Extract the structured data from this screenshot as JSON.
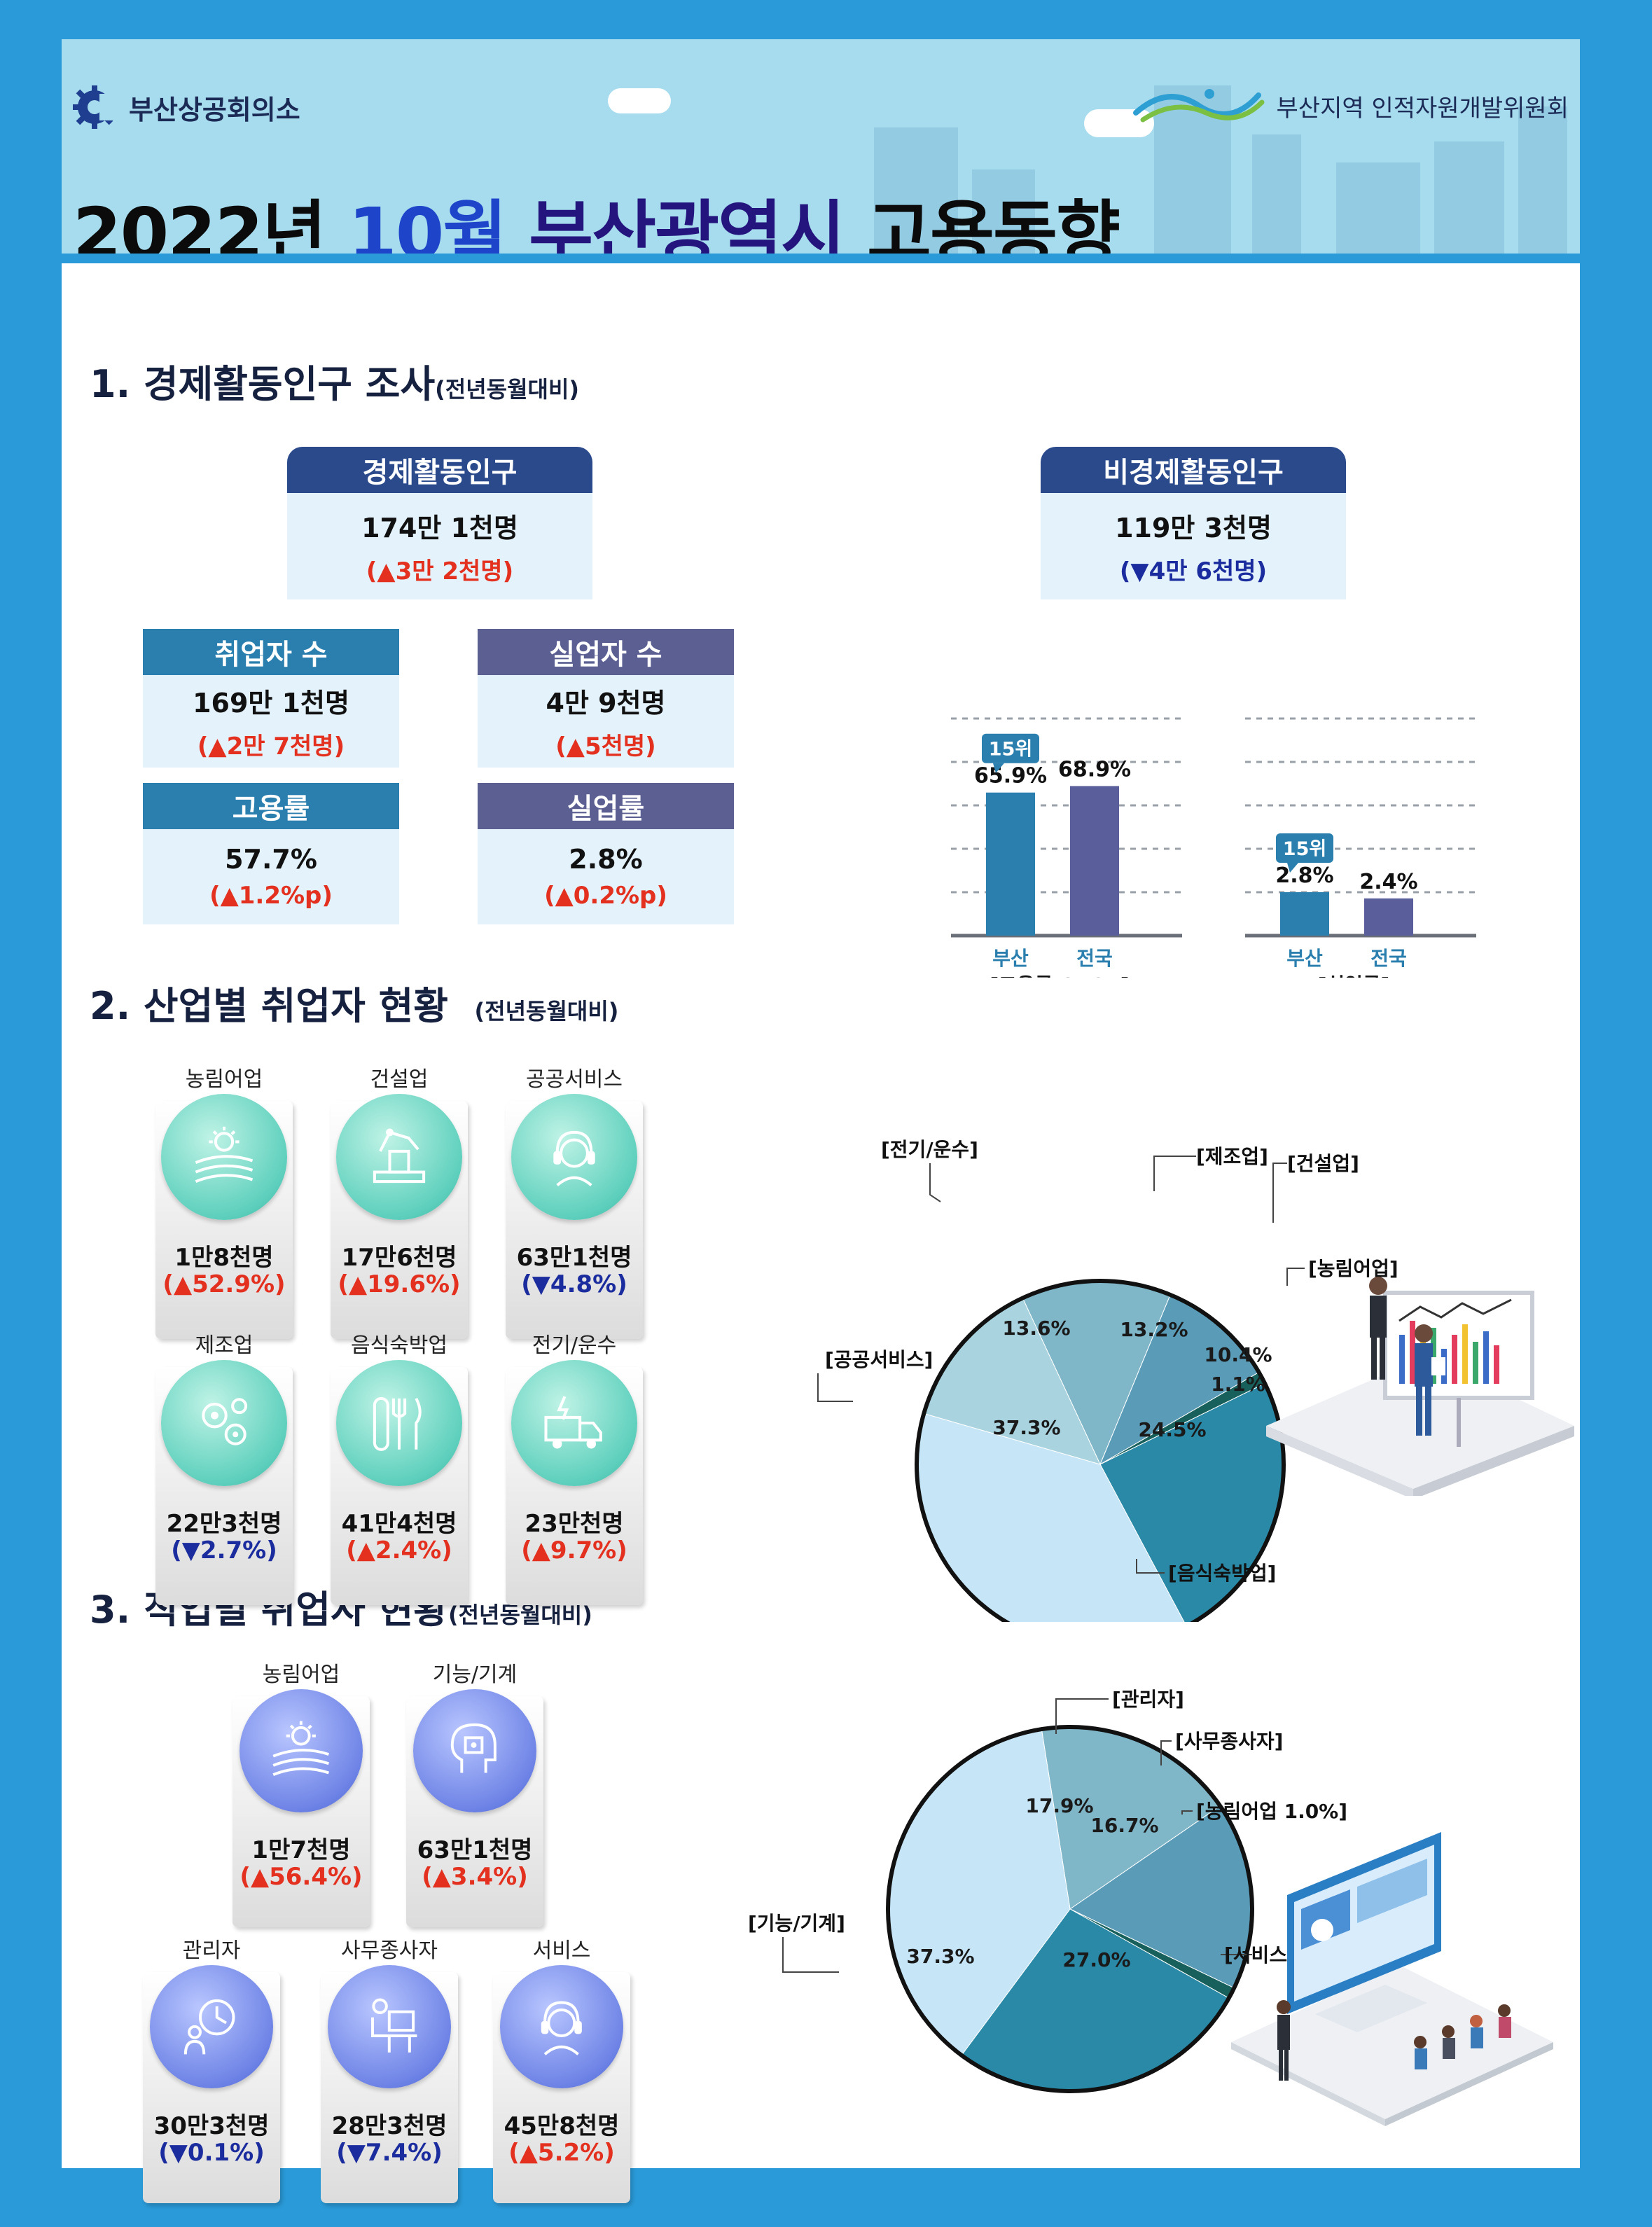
{
  "header": {
    "org_left": "부산상공회의소",
    "org_right": "부산지역 인적자원개발위원회",
    "title_year": "2022년",
    "title_month": "10월",
    "title_city": "부산광역시",
    "title_topic": "고용동향"
  },
  "section1": {
    "title": "1. 경제활동인구 조사",
    "subtitle": "(전년동월대비)",
    "econ_active": {
      "label": "경제활동인구",
      "value": "174만 1천명",
      "change": "(▲3만 2천명)"
    },
    "non_econ_active": {
      "label": "비경제활동인구",
      "value": "119만 3천명",
      "change": "(▼4만 6천명)"
    },
    "employed": {
      "label": "취업자 수",
      "value": "169만 1천명",
      "change": "(▲2만 7천명)"
    },
    "unemployed": {
      "label": "실업자 수",
      "value": "4만 9천명",
      "change": "(▲5천명)"
    },
    "employment_rate": {
      "label": "고용률",
      "value": "57.7%",
      "change": "(▲1.2%p)"
    },
    "unemployment_rate": {
      "label": "실업률",
      "value": "2.8%",
      "change": "(▲0.2%p)"
    }
  },
  "section2": {
    "title": "2. 산업별 취업자 현황",
    "subtitle": "(전년동월대비)",
    "items": [
      {
        "label": "농림어업",
        "value": "1만8천명",
        "change": "(▲52.9%)",
        "dir": "up",
        "icon": "farm-icon"
      },
      {
        "label": "건설업",
        "value": "17만6천명",
        "change": "(▲19.6%)",
        "dir": "up",
        "icon": "construction-icon"
      },
      {
        "label": "공공서비스",
        "value": "63만1천명",
        "change": "(▼4.8%)",
        "dir": "down",
        "icon": "headset-icon"
      },
      {
        "label": "제조업",
        "value": "22만3천명",
        "change": "(▼2.7%)",
        "dir": "down",
        "icon": "gears-icon"
      },
      {
        "label": "음식숙박업",
        "value": "41만4천명",
        "change": "(▲2.4%)",
        "dir": "up",
        "icon": "cutlery-icon"
      },
      {
        "label": "전기/운수",
        "value": "23만천명",
        "change": "(▲9.7%)",
        "dir": "up",
        "icon": "truck-icon"
      }
    ]
  },
  "section3": {
    "title": "3. 직업별 취업자 현황",
    "subtitle": "(전년동월대비)",
    "items": [
      {
        "label": "농림어업",
        "value": "1만7천명",
        "change": "(▲56.4%)",
        "dir": "up",
        "icon": "farm-icon"
      },
      {
        "label": "기능/기계",
        "value": "63만1천명",
        "change": "(▲3.4%)",
        "dir": "up",
        "icon": "chip-head-icon"
      },
      {
        "label": "관리자",
        "value": "30만3천명",
        "change": "(▼0.1%)",
        "dir": "down",
        "icon": "clock-manager-icon"
      },
      {
        "label": "사무종사자",
        "value": "28만3천명",
        "change": "(▼7.4%)",
        "dir": "down",
        "icon": "office-worker-icon"
      },
      {
        "label": "서비스",
        "value": "45만8천명",
        "change": "(▲5.2%)",
        "dir": "up",
        "icon": "headset-icon"
      }
    ]
  },
  "colors": {
    "up": "#e3301f",
    "down": "#1b2c9e",
    "busan_bar": "#2a7fae",
    "national_bar": "#5a5f9c",
    "pie_light": "#c6e5f6",
    "pie_mid": "#7fb6c8",
    "pie_teal": "#2989a6",
    "pie_dark": "#17605c"
  },
  "chart_data": [
    {
      "type": "bar",
      "categories": [
        "부산",
        "전국"
      ],
      "values": [
        65.9,
        68.9
      ],
      "value_labels": [
        "65.9%",
        "68.9%"
      ],
      "badge": "15위",
      "xlabel": "[고용률 OECD]",
      "grid": true
    },
    {
      "type": "bar",
      "categories": [
        "부산",
        "전국"
      ],
      "values": [
        2.8,
        2.4
      ],
      "value_labels": [
        "2.8%",
        "2.4%"
      ],
      "badge": "15위",
      "xlabel": "[실업률]",
      "grid": true
    },
    {
      "type": "pie",
      "slices": [
        {
          "label": "[제조업]",
          "value": 13.2,
          "display": "13.2%",
          "color": "#7fb6c8"
        },
        {
          "label": "[건설업]",
          "value": 10.4,
          "display": "10.4%",
          "color": "#5a9cb8"
        },
        {
          "label": "[농림어업]",
          "value": 1.1,
          "display": "1.1%",
          "color": "#17605c"
        },
        {
          "label": "[음식숙박업]",
          "value": 24.5,
          "display": "24.5%",
          "color": "#2989a6"
        },
        {
          "label": "[공공서비스]",
          "value": 37.3,
          "display": "37.3%",
          "color": "#c6e5f6"
        },
        {
          "label": "[전기/운수]",
          "value": 13.6,
          "display": "13.6%",
          "color": "#a9d3de"
        }
      ]
    },
    {
      "type": "pie",
      "slices": [
        {
          "label": "[관리자]",
          "value": 17.9,
          "display": "17.9%",
          "color": "#7fb6c8"
        },
        {
          "label": "[사무종사자]",
          "value": 16.7,
          "display": "16.7%",
          "color": "#5a9cb8"
        },
        {
          "label": "[농림어업 1.0%]",
          "value": 1.0,
          "display": "",
          "color": "#17605c"
        },
        {
          "label": "[서비스]",
          "value": 27.0,
          "display": "27.0%",
          "color": "#2989a6"
        },
        {
          "label": "[기능/기계]",
          "value": 37.3,
          "display": "37.3%",
          "color": "#c6e5f6"
        }
      ]
    }
  ]
}
